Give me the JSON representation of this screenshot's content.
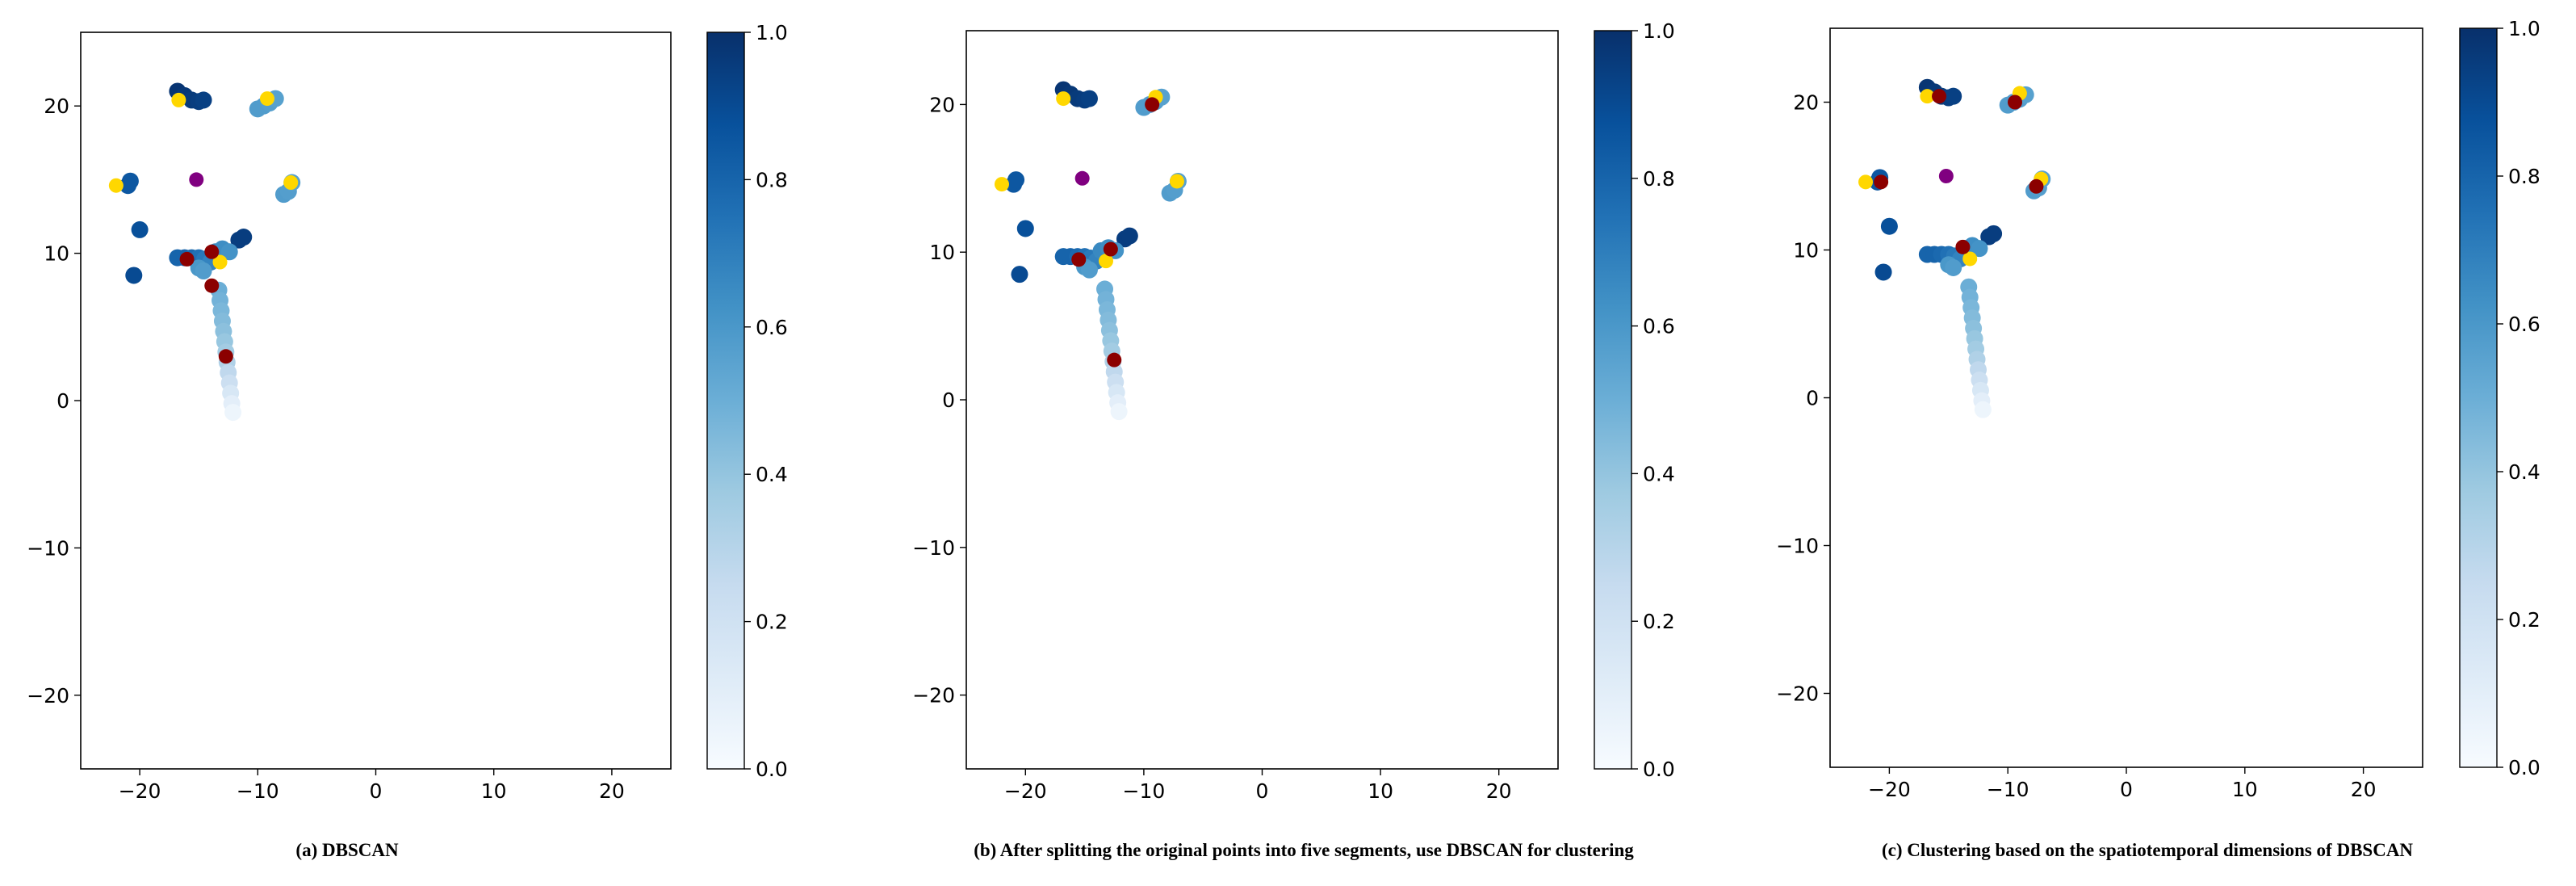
{
  "colors": {
    "cmap_low": "#f7fbff",
    "cmap_high": "#08306b",
    "centroid_yellow": "#ffd700",
    "centroid_red": "#8b0000",
    "centroid_purple": "#800080",
    "axis": "#000000"
  },
  "chart_data": [
    {
      "type": "scatter",
      "caption": "(a)  DBSCAN",
      "xlim": [
        -25,
        25
      ],
      "ylim": [
        -25,
        25
      ],
      "xticks": [
        -20,
        -10,
        0,
        10,
        20
      ],
      "yticks": [
        -20,
        -10,
        0,
        10,
        20
      ],
      "colorbar": {
        "range": [
          0,
          1
        ],
        "ticks": [
          "0.0",
          "0.2",
          "0.4",
          "0.6",
          "0.8",
          "1.0"
        ]
      },
      "points": [
        {
          "x": -16.8,
          "y": 21.0,
          "v": 0.98
        },
        {
          "x": -16.2,
          "y": 20.7,
          "v": 0.97
        },
        {
          "x": -15.6,
          "y": 20.4,
          "v": 0.96
        },
        {
          "x": -15.0,
          "y": 20.3,
          "v": 0.95
        },
        {
          "x": -14.6,
          "y": 20.4,
          "v": 0.94
        },
        {
          "x": -10.0,
          "y": 19.8,
          "v": 0.58
        },
        {
          "x": -9.5,
          "y": 20.0,
          "v": 0.58
        },
        {
          "x": -9.0,
          "y": 20.2,
          "v": 0.57
        },
        {
          "x": -8.5,
          "y": 20.5,
          "v": 0.56
        },
        {
          "x": -21.0,
          "y": 14.6,
          "v": 0.85
        },
        {
          "x": -20.8,
          "y": 14.9,
          "v": 0.85
        },
        {
          "x": -7.8,
          "y": 14.0,
          "v": 0.58
        },
        {
          "x": -7.4,
          "y": 14.2,
          "v": 0.57
        },
        {
          "x": -7.1,
          "y": 14.8,
          "v": 0.56
        },
        {
          "x": -20.0,
          "y": 11.6,
          "v": 0.88
        },
        {
          "x": -20.5,
          "y": 8.5,
          "v": 0.9
        },
        {
          "x": -11.6,
          "y": 10.9,
          "v": 0.95
        },
        {
          "x": -11.2,
          "y": 11.1,
          "v": 0.95
        },
        {
          "x": -16.8,
          "y": 9.7,
          "v": 0.8
        },
        {
          "x": -16.2,
          "y": 9.7,
          "v": 0.8
        },
        {
          "x": -15.6,
          "y": 9.7,
          "v": 0.78
        },
        {
          "x": -15.0,
          "y": 9.7,
          "v": 0.75
        },
        {
          "x": -14.5,
          "y": 9.6,
          "v": 0.72
        },
        {
          "x": -14.0,
          "y": 9.4,
          "v": 0.68
        },
        {
          "x": -13.6,
          "y": 10.1,
          "v": 0.66
        },
        {
          "x": -13.0,
          "y": 10.3,
          "v": 0.64
        },
        {
          "x": -12.4,
          "y": 10.1,
          "v": 0.62
        },
        {
          "x": -15.0,
          "y": 9.0,
          "v": 0.6
        },
        {
          "x": -14.6,
          "y": 8.8,
          "v": 0.58
        },
        {
          "x": -13.3,
          "y": 7.5,
          "v": 0.5
        },
        {
          "x": -13.2,
          "y": 6.8,
          "v": 0.48
        },
        {
          "x": -13.1,
          "y": 6.1,
          "v": 0.46
        },
        {
          "x": -13.0,
          "y": 5.4,
          "v": 0.44
        },
        {
          "x": -12.9,
          "y": 4.7,
          "v": 0.42
        },
        {
          "x": -12.8,
          "y": 4.0,
          "v": 0.39
        },
        {
          "x": -12.7,
          "y": 3.3,
          "v": 0.36
        },
        {
          "x": -12.6,
          "y": 2.6,
          "v": 0.32
        },
        {
          "x": -12.5,
          "y": 1.9,
          "v": 0.27
        },
        {
          "x": -12.4,
          "y": 1.2,
          "v": 0.22
        },
        {
          "x": -12.3,
          "y": 0.5,
          "v": 0.16
        },
        {
          "x": -12.2,
          "y": -0.2,
          "v": 0.1
        },
        {
          "x": -12.1,
          "y": -0.8,
          "v": 0.05
        }
      ],
      "centroids": [
        {
          "x": -22.0,
          "y": 14.6,
          "c": "yellow"
        },
        {
          "x": -16.7,
          "y": 20.4,
          "c": "yellow"
        },
        {
          "x": -9.2,
          "y": 20.5,
          "c": "yellow"
        },
        {
          "x": -7.2,
          "y": 14.8,
          "c": "yellow"
        },
        {
          "x": -13.2,
          "y": 9.4,
          "c": "yellow"
        },
        {
          "x": -15.2,
          "y": 15.0,
          "c": "purple"
        },
        {
          "x": -16.0,
          "y": 9.6,
          "c": "red"
        },
        {
          "x": -13.9,
          "y": 10.1,
          "c": "red"
        },
        {
          "x": -13.9,
          "y": 7.8,
          "c": "red"
        },
        {
          "x": -12.7,
          "y": 3.0,
          "c": "red"
        }
      ]
    },
    {
      "type": "scatter",
      "caption": "(b) After splitting the original points into five segments, use DBSCAN for clustering",
      "xlim": [
        -25,
        25
      ],
      "ylim": [
        -25,
        25
      ],
      "xticks": [
        -20,
        -10,
        0,
        10,
        20
      ],
      "yticks": [
        -20,
        -10,
        0,
        10,
        20
      ],
      "colorbar": {
        "range": [
          0,
          1
        ],
        "ticks": [
          "0.0",
          "0.2",
          "0.4",
          "0.6",
          "0.8",
          "1.0"
        ]
      },
      "points": [
        {
          "x": -16.8,
          "y": 21.0,
          "v": 0.98
        },
        {
          "x": -16.2,
          "y": 20.7,
          "v": 0.97
        },
        {
          "x": -15.6,
          "y": 20.4,
          "v": 0.96
        },
        {
          "x": -15.0,
          "y": 20.3,
          "v": 0.95
        },
        {
          "x": -14.6,
          "y": 20.4,
          "v": 0.94
        },
        {
          "x": -10.0,
          "y": 19.8,
          "v": 0.58
        },
        {
          "x": -9.5,
          "y": 20.0,
          "v": 0.58
        },
        {
          "x": -9.0,
          "y": 20.2,
          "v": 0.57
        },
        {
          "x": -8.5,
          "y": 20.5,
          "v": 0.56
        },
        {
          "x": -21.0,
          "y": 14.6,
          "v": 0.85
        },
        {
          "x": -20.8,
          "y": 14.9,
          "v": 0.85
        },
        {
          "x": -7.8,
          "y": 14.0,
          "v": 0.58
        },
        {
          "x": -7.4,
          "y": 14.2,
          "v": 0.57
        },
        {
          "x": -7.1,
          "y": 14.8,
          "v": 0.56
        },
        {
          "x": -20.0,
          "y": 11.6,
          "v": 0.88
        },
        {
          "x": -20.5,
          "y": 8.5,
          "v": 0.9
        },
        {
          "x": -11.6,
          "y": 10.9,
          "v": 0.95
        },
        {
          "x": -11.2,
          "y": 11.1,
          "v": 0.95
        },
        {
          "x": -16.8,
          "y": 9.7,
          "v": 0.8
        },
        {
          "x": -16.2,
          "y": 9.7,
          "v": 0.8
        },
        {
          "x": -15.6,
          "y": 9.7,
          "v": 0.78
        },
        {
          "x": -15.0,
          "y": 9.7,
          "v": 0.75
        },
        {
          "x": -14.5,
          "y": 9.6,
          "v": 0.72
        },
        {
          "x": -14.0,
          "y": 9.4,
          "v": 0.68
        },
        {
          "x": -13.6,
          "y": 10.1,
          "v": 0.66
        },
        {
          "x": -13.0,
          "y": 10.3,
          "v": 0.64
        },
        {
          "x": -12.4,
          "y": 10.1,
          "v": 0.62
        },
        {
          "x": -15.0,
          "y": 9.0,
          "v": 0.6
        },
        {
          "x": -14.6,
          "y": 8.8,
          "v": 0.58
        },
        {
          "x": -13.3,
          "y": 7.5,
          "v": 0.5
        },
        {
          "x": -13.2,
          "y": 6.8,
          "v": 0.48
        },
        {
          "x": -13.1,
          "y": 6.1,
          "v": 0.46
        },
        {
          "x": -13.0,
          "y": 5.4,
          "v": 0.44
        },
        {
          "x": -12.9,
          "y": 4.7,
          "v": 0.42
        },
        {
          "x": -12.8,
          "y": 4.0,
          "v": 0.39
        },
        {
          "x": -12.7,
          "y": 3.3,
          "v": 0.36
        },
        {
          "x": -12.6,
          "y": 2.6,
          "v": 0.32
        },
        {
          "x": -12.5,
          "y": 1.9,
          "v": 0.27
        },
        {
          "x": -12.4,
          "y": 1.2,
          "v": 0.22
        },
        {
          "x": -12.3,
          "y": 0.5,
          "v": 0.16
        },
        {
          "x": -12.2,
          "y": -0.2,
          "v": 0.1
        },
        {
          "x": -12.1,
          "y": -0.8,
          "v": 0.05
        }
      ],
      "centroids": [
        {
          "x": -22.0,
          "y": 14.6,
          "c": "yellow"
        },
        {
          "x": -16.8,
          "y": 20.4,
          "c": "yellow"
        },
        {
          "x": -9.0,
          "y": 20.5,
          "c": "yellow"
        },
        {
          "x": -7.2,
          "y": 14.8,
          "c": "yellow"
        },
        {
          "x": -13.2,
          "y": 9.4,
          "c": "yellow"
        },
        {
          "x": -15.2,
          "y": 15.0,
          "c": "purple"
        },
        {
          "x": -15.5,
          "y": 9.5,
          "c": "red"
        },
        {
          "x": -12.8,
          "y": 10.2,
          "c": "red"
        },
        {
          "x": -9.3,
          "y": 20.0,
          "c": "red"
        },
        {
          "x": -12.5,
          "y": 2.7,
          "c": "red"
        }
      ]
    },
    {
      "type": "scatter",
      "caption": "(c) Clustering based on the spatiotemporal dimensions of DBSCAN",
      "xlim": [
        -25,
        25
      ],
      "ylim": [
        -25,
        25
      ],
      "xticks": [
        -20,
        -10,
        0,
        10,
        20
      ],
      "yticks": [
        -20,
        -10,
        0,
        10,
        20
      ],
      "colorbar": {
        "range": [
          0,
          1
        ],
        "ticks": [
          "0.0",
          "0.2",
          "0.4",
          "0.6",
          "0.8",
          "1.0"
        ]
      },
      "points": [
        {
          "x": -16.8,
          "y": 21.0,
          "v": 0.98
        },
        {
          "x": -16.2,
          "y": 20.7,
          "v": 0.97
        },
        {
          "x": -15.6,
          "y": 20.4,
          "v": 0.96
        },
        {
          "x": -15.0,
          "y": 20.3,
          "v": 0.95
        },
        {
          "x": -14.6,
          "y": 20.4,
          "v": 0.94
        },
        {
          "x": -10.0,
          "y": 19.8,
          "v": 0.58
        },
        {
          "x": -9.5,
          "y": 20.0,
          "v": 0.58
        },
        {
          "x": -9.0,
          "y": 20.2,
          "v": 0.57
        },
        {
          "x": -8.5,
          "y": 20.5,
          "v": 0.56
        },
        {
          "x": -21.0,
          "y": 14.6,
          "v": 0.85
        },
        {
          "x": -20.8,
          "y": 14.9,
          "v": 0.85
        },
        {
          "x": -7.8,
          "y": 14.0,
          "v": 0.58
        },
        {
          "x": -7.4,
          "y": 14.2,
          "v": 0.57
        },
        {
          "x": -7.1,
          "y": 14.8,
          "v": 0.56
        },
        {
          "x": -20.0,
          "y": 11.6,
          "v": 0.88
        },
        {
          "x": -20.5,
          "y": 8.5,
          "v": 0.9
        },
        {
          "x": -11.6,
          "y": 10.9,
          "v": 0.95
        },
        {
          "x": -11.2,
          "y": 11.1,
          "v": 0.95
        },
        {
          "x": -16.8,
          "y": 9.7,
          "v": 0.8
        },
        {
          "x": -16.2,
          "y": 9.7,
          "v": 0.8
        },
        {
          "x": -15.6,
          "y": 9.7,
          "v": 0.78
        },
        {
          "x": -15.0,
          "y": 9.7,
          "v": 0.75
        },
        {
          "x": -14.5,
          "y": 9.6,
          "v": 0.72
        },
        {
          "x": -14.0,
          "y": 9.4,
          "v": 0.68
        },
        {
          "x": -13.6,
          "y": 10.1,
          "v": 0.66
        },
        {
          "x": -13.0,
          "y": 10.3,
          "v": 0.64
        },
        {
          "x": -12.4,
          "y": 10.1,
          "v": 0.62
        },
        {
          "x": -15.0,
          "y": 9.0,
          "v": 0.6
        },
        {
          "x": -14.6,
          "y": 8.8,
          "v": 0.58
        },
        {
          "x": -13.3,
          "y": 7.5,
          "v": 0.5
        },
        {
          "x": -13.2,
          "y": 6.8,
          "v": 0.48
        },
        {
          "x": -13.1,
          "y": 6.1,
          "v": 0.46
        },
        {
          "x": -13.0,
          "y": 5.4,
          "v": 0.44
        },
        {
          "x": -12.9,
          "y": 4.7,
          "v": 0.42
        },
        {
          "x": -12.8,
          "y": 4.0,
          "v": 0.39
        },
        {
          "x": -12.7,
          "y": 3.3,
          "v": 0.36
        },
        {
          "x": -12.6,
          "y": 2.6,
          "v": 0.32
        },
        {
          "x": -12.5,
          "y": 1.9,
          "v": 0.27
        },
        {
          "x": -12.4,
          "y": 1.2,
          "v": 0.22
        },
        {
          "x": -12.3,
          "y": 0.5,
          "v": 0.16
        },
        {
          "x": -12.2,
          "y": -0.2,
          "v": 0.1
        },
        {
          "x": -12.1,
          "y": -0.8,
          "v": 0.05
        }
      ],
      "centroids": [
        {
          "x": -22.0,
          "y": 14.6,
          "c": "yellow"
        },
        {
          "x": -16.8,
          "y": 20.4,
          "c": "yellow"
        },
        {
          "x": -9.0,
          "y": 20.6,
          "c": "yellow"
        },
        {
          "x": -7.2,
          "y": 14.8,
          "c": "yellow"
        },
        {
          "x": -13.2,
          "y": 9.4,
          "c": "yellow"
        },
        {
          "x": -15.2,
          "y": 15.0,
          "c": "purple"
        },
        {
          "x": -20.7,
          "y": 14.6,
          "c": "red"
        },
        {
          "x": -15.8,
          "y": 20.4,
          "c": "red"
        },
        {
          "x": -9.4,
          "y": 20.0,
          "c": "red"
        },
        {
          "x": -7.6,
          "y": 14.3,
          "c": "red"
        },
        {
          "x": -13.8,
          "y": 10.2,
          "c": "red"
        }
      ]
    }
  ]
}
